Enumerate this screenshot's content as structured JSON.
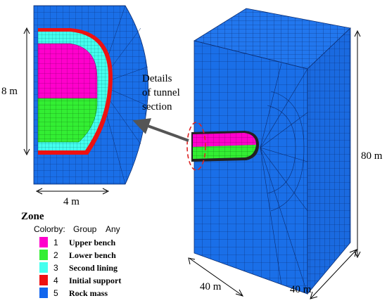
{
  "annotation": {
    "details_line1": "Details",
    "details_line2": "of tunnel",
    "details_line3": "section"
  },
  "dimensions": {
    "detail_height": "8 m",
    "detail_width": "4 m",
    "model_height": "80 m",
    "model_depth": "40 m",
    "model_width": "40 m"
  },
  "legend": {
    "title": "Zone",
    "colorby_label": "Colorby:",
    "colorby_value": "Group",
    "colorby_mode": "Any",
    "items": [
      {
        "num": "1",
        "label": "Upper bench",
        "color": "#ff00cc"
      },
      {
        "num": "2",
        "label": "Lower bench",
        "color": "#33ee33"
      },
      {
        "num": "3",
        "label": "Second lining",
        "color": "#44ffee"
      },
      {
        "num": "4",
        "label": "Initial support",
        "color": "#ee1111"
      },
      {
        "num": "5",
        "label": "Rock mass",
        "color": "#1166ee"
      }
    ]
  },
  "colors": {
    "rock": "#1a6fe8",
    "rock_side": "#1560d8",
    "mesh": "#0a2a6a",
    "arrow": "#555555",
    "circle": "#dd2222"
  }
}
